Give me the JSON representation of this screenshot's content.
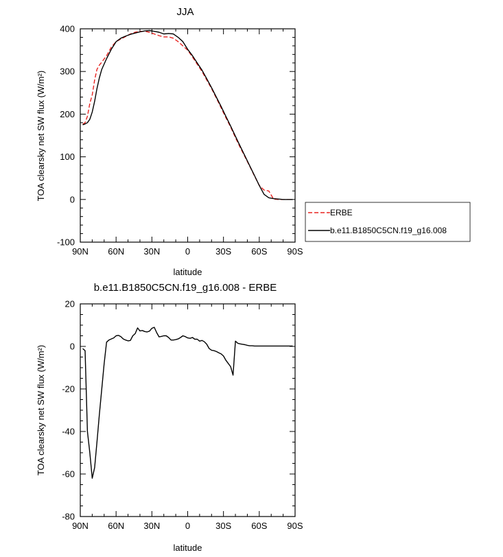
{
  "chart_data": [
    {
      "type": "line",
      "title": "JJA",
      "xlabel": "latitude",
      "ylabel": "TOA clearsky net SW flux (W/m²)",
      "xlim": [
        90,
        -90
      ],
      "ylim": [
        -100,
        400
      ],
      "xticks": [
        90,
        60,
        30,
        0,
        -30,
        -60,
        -90
      ],
      "xtick_labels": [
        "90N",
        "60N",
        "30N",
        "0",
        "30S",
        "60S",
        "90S"
      ],
      "yticks": [
        400,
        300,
        200,
        100,
        0,
        -100
      ],
      "ytick_labels": [
        "400",
        "300",
        "200",
        "100",
        "0",
        "-100"
      ],
      "legend": "right",
      "series": [
        {
          "name": "ERBE",
          "color": "#e8221f",
          "dash": "dashed",
          "x": [
            88,
            86,
            84,
            82,
            80,
            78,
            76,
            74,
            72,
            68,
            64,
            60,
            56,
            52,
            48,
            44,
            40,
            36,
            32,
            28,
            24,
            20,
            16,
            12,
            8,
            4,
            0,
            -4,
            -8,
            -12,
            -16,
            -20,
            -24,
            -28,
            -32,
            -36,
            -40,
            -44,
            -48,
            -52,
            -56,
            -60,
            -64,
            -68,
            -72,
            -76,
            -80,
            -84,
            -88
          ],
          "y": [
            176,
            180,
            195,
            225,
            245,
            280,
            305,
            315,
            322,
            337,
            357,
            370,
            376,
            382,
            388,
            392,
            394,
            394,
            392,
            388,
            384,
            381,
            381,
            378,
            370,
            360,
            350,
            334,
            317,
            300,
            280,
            260,
            238,
            215,
            192,
            170,
            145,
            122,
            100,
            78,
            55,
            33,
            22,
            20,
            1,
            0,
            0,
            0,
            0
          ]
        },
        {
          "name": "b.e11.B1850C5CN.f19_g16.008",
          "color": "#000000",
          "dash": "solid",
          "x": [
            88,
            86,
            84,
            82,
            80,
            78,
            76,
            74,
            72,
            68,
            64,
            60,
            56,
            52,
            48,
            44,
            40,
            36,
            32,
            28,
            24,
            20,
            16,
            12,
            8,
            4,
            0,
            -4,
            -8,
            -12,
            -16,
            -20,
            -24,
            -28,
            -32,
            -36,
            -40,
            -44,
            -48,
            -52,
            -56,
            -60,
            -64,
            -68,
            -72,
            -76,
            -80,
            -84,
            -88
          ],
          "y": [
            175,
            177,
            180,
            188,
            205,
            230,
            260,
            285,
            305,
            330,
            352,
            370,
            378,
            383,
            387,
            390,
            393,
            395,
            396,
            394,
            392,
            388,
            389,
            388,
            380,
            370,
            352,
            337,
            320,
            303,
            283,
            262,
            240,
            218,
            195,
            172,
            148,
            125,
            102,
            79,
            56,
            33,
            12,
            4,
            2,
            1,
            0,
            0,
            0
          ]
        }
      ]
    },
    {
      "type": "line",
      "title": "b.e11.B1850C5CN.f19_g16.008 - ERBE",
      "xlabel": "latitude",
      "ylabel": "TOA clearsky net SW flux (W/m²)",
      "xlim": [
        90,
        -90
      ],
      "ylim": [
        -80,
        20
      ],
      "xticks": [
        90,
        60,
        30,
        0,
        -30,
        -60,
        -90
      ],
      "xtick_labels": [
        "90N",
        "60N",
        "30N",
        "0",
        "30S",
        "60S",
        "90S"
      ],
      "yticks": [
        20,
        0,
        -20,
        -40,
        -60,
        -80
      ],
      "ytick_labels": [
        "20",
        "0",
        "-20",
        "-40",
        "-60",
        "-80"
      ],
      "series": [
        {
          "color": "#000000",
          "dash": "solid",
          "x": [
            88,
            86,
            84,
            82,
            80,
            78,
            76,
            74,
            72,
            70,
            68,
            66,
            64,
            62,
            60,
            58,
            56,
            54,
            52,
            50,
            48,
            46,
            44,
            42,
            40,
            38,
            36,
            34,
            32,
            30,
            28,
            26,
            24,
            22,
            20,
            18,
            16,
            14,
            12,
            10,
            8,
            6,
            4,
            2,
            0,
            -2,
            -4,
            -6,
            -8,
            -10,
            -12,
            -14,
            -16,
            -18,
            -20,
            -22,
            -24,
            -26,
            -28,
            -30,
            -32,
            -34,
            -36,
            -38,
            -40,
            -42,
            -44,
            -46,
            -48,
            -50,
            -52,
            -54,
            -56,
            -58,
            -60,
            -62,
            -64,
            -65,
            -66,
            -67,
            -68,
            -70,
            -72,
            -74,
            -76,
            -78,
            -80,
            -82,
            -84,
            -86,
            -88
          ],
          "y": [
            -1,
            -2,
            -40,
            -50,
            -62,
            -57,
            -45,
            -32,
            -20,
            -8,
            2,
            3,
            3.5,
            4,
            5,
            5.2,
            4.6,
            3.5,
            3,
            2.6,
            2.8,
            5,
            6,
            8.7,
            7.3,
            7.5,
            7,
            6.8,
            7.2,
            8.5,
            9,
            6.5,
            4.5,
            4.7,
            5,
            5,
            4.2,
            3,
            3,
            3.2,
            3.5,
            4.2,
            5,
            4.6,
            4,
            3.8,
            4.2,
            3.4,
            3.4,
            2.5,
            2.8,
            2.2,
            1,
            -1,
            -1.8,
            -2,
            -2.4,
            -3,
            -3.5,
            -4.5,
            -6.5,
            -8,
            -9.5,
            -13.5,
            2.5,
            1.5,
            1.2,
            1,
            0.8,
            0.5,
            0.3,
            0.3,
            0.2,
            0.2,
            0.2,
            0.2,
            0.2,
            0.2,
            0.2,
            0.2,
            0.2,
            0.2,
            0.2,
            0.2,
            0.2,
            0.2,
            0.2,
            0.2,
            0.2,
            0.2,
            0.2
          ]
        }
      ]
    }
  ]
}
